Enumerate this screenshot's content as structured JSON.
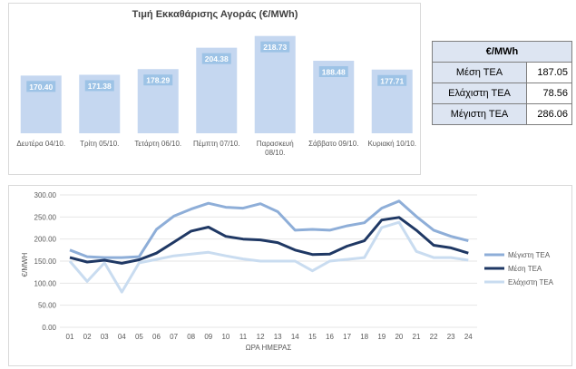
{
  "chart_data": [
    {
      "type": "bar",
      "title": "Τιμή Εκκαθάρισης Αγοράς (€/MWh)",
      "categories": [
        "Δευτέρα 04/10.",
        "Τρίτη 05/10.",
        "Τετάρτη 06/10.",
        "Πέμπτη 07/10.",
        "Παρασκευή 08/10.",
        "Σάββατο 09/10.",
        "Κυριακή 10/10."
      ],
      "values": [
        170.4,
        171.38,
        178.29,
        204.38,
        218.73,
        188.48,
        177.71
      ],
      "value_labels": [
        "170.40",
        "171.38",
        "178.29",
        "204.38",
        "218.73",
        "188.48",
        "177.71"
      ],
      "colors": {
        "bar": "#c5d7f0",
        "label_bg": "#9dc3e6",
        "label_text": "#ffffff"
      }
    },
    {
      "type": "line",
      "xlabel": "ΩΡΑ ΗΜΕΡΑΣ",
      "ylabel": "€/MWH",
      "ylim": [
        0,
        300
      ],
      "yticks": [
        "0.00",
        "50.00",
        "100.00",
        "150.00",
        "200.00",
        "250.00",
        "300.00"
      ],
      "ytick_values": [
        0,
        50,
        100,
        150,
        200,
        250,
        300
      ],
      "grid": true,
      "legend_position": "right",
      "x": [
        "01",
        "02",
        "03",
        "04",
        "05",
        "06",
        "07",
        "08",
        "09",
        "10",
        "11",
        "12",
        "13",
        "14",
        "15",
        "16",
        "17",
        "18",
        "19",
        "20",
        "21",
        "22",
        "23",
        "24"
      ],
      "series": [
        {
          "name": "Μέγιστη ΤΕΑ",
          "color": "#8eaed8",
          "width": 3,
          "values": [
            175,
            160,
            158,
            158,
            160,
            222,
            252,
            268,
            281,
            272,
            270,
            280,
            262,
            220,
            222,
            220,
            230,
            237,
            270,
            286,
            251,
            220,
            206,
            196
          ]
        },
        {
          "name": "Μέση ΤΕΑ",
          "color": "#1f3864",
          "width": 3,
          "values": [
            158,
            148,
            152,
            145,
            153,
            168,
            193,
            218,
            227,
            206,
            200,
            198,
            192,
            175,
            165,
            166,
            184,
            196,
            243,
            249,
            220,
            186,
            180,
            168
          ]
        },
        {
          "name": "Ελάχιστη ΤΕΑ",
          "color": "#c9dcf0",
          "width": 3,
          "values": [
            150,
            104,
            146,
            80,
            146,
            154,
            162,
            166,
            170,
            162,
            155,
            150,
            150,
            150,
            128,
            150,
            154,
            158,
            226,
            238,
            172,
            158,
            158,
            152
          ]
        }
      ]
    }
  ],
  "summary_table": {
    "header": "€/MWh",
    "rows": [
      {
        "label": "Μέση ΤΕΑ",
        "value": "187.05"
      },
      {
        "label": "Ελάχιστη ΤΕΑ",
        "value": "78.56"
      },
      {
        "label": "Μέγιστη ΤΕΑ",
        "value": "286.06"
      }
    ]
  }
}
